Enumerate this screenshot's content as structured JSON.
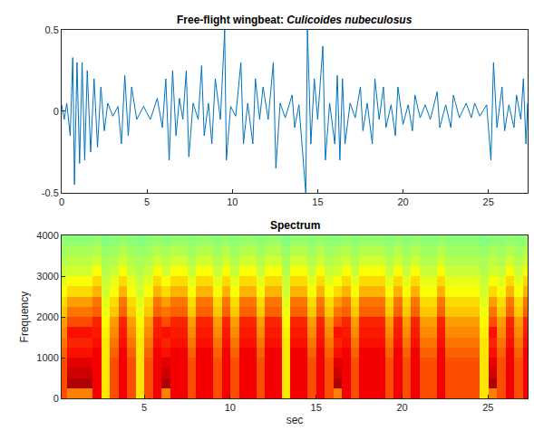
{
  "chart_data": [
    {
      "type": "line",
      "title": "Free-flight wingbeat: Culicoides nubeculosus",
      "color": "#0072bd",
      "xlim": [
        0,
        27.3
      ],
      "xticks": [
        0,
        5,
        10,
        15,
        20,
        25
      ],
      "ylim": [
        -0.5,
        0.5
      ],
      "yticks": [
        -0.5,
        0,
        0.5
      ],
      "x": [
        0,
        0.15,
        0.3,
        0.5,
        0.65,
        0.75,
        0.9,
        1.05,
        1.2,
        1.35,
        1.5,
        1.7,
        1.9,
        2.1,
        2.3,
        2.5,
        2.7,
        3.0,
        3.3,
        3.5,
        3.7,
        3.9,
        4.1,
        4.4,
        4.8,
        5.2,
        5.6,
        5.9,
        6.1,
        6.3,
        6.5,
        6.7,
        6.9,
        7.1,
        7.3,
        7.45,
        7.7,
        8.0,
        8.2,
        8.35,
        8.6,
        8.8,
        9.0,
        9.3,
        9.55,
        9.65,
        9.9,
        10.2,
        10.5,
        10.65,
        10.9,
        11.2,
        11.35,
        11.6,
        11.8,
        12.1,
        12.4,
        12.55,
        12.8,
        13.1,
        13.5,
        13.65,
        13.9,
        14.3,
        14.4,
        14.6,
        14.8,
        15.0,
        15.3,
        15.45,
        15.7,
        16.0,
        16.15,
        16.3,
        16.45,
        16.6,
        16.9,
        17.2,
        17.5,
        17.65,
        17.9,
        18.2,
        18.35,
        18.6,
        18.85,
        19.0,
        19.3,
        19.55,
        19.7,
        20.0,
        20.3,
        20.55,
        20.7,
        21.0,
        21.3,
        21.6,
        22.0,
        22.15,
        22.5,
        22.8,
        22.95,
        23.3,
        23.7,
        24.0,
        24.2,
        24.5,
        24.9,
        25.15,
        25.3,
        25.5,
        25.8,
        25.95,
        26.2,
        26.5,
        26.65,
        26.9,
        27.05,
        27.2,
        27.3
      ],
      "values": [
        0.04,
        -0.05,
        0.05,
        -0.15,
        0.33,
        -0.45,
        0.3,
        -0.32,
        0.3,
        -0.3,
        0.25,
        -0.25,
        0.2,
        -0.22,
        0.15,
        -0.12,
        0.05,
        -0.03,
        0.03,
        -0.2,
        0.22,
        -0.15,
        0.15,
        -0.05,
        0.03,
        -0.05,
        0.08,
        -0.1,
        0.2,
        -0.3,
        0.25,
        -0.15,
        0.08,
        -0.05,
        0.25,
        -0.28,
        0.05,
        -0.05,
        0.28,
        -0.15,
        0.05,
        -0.2,
        0.2,
        -0.05,
        0.5,
        -0.3,
        0.03,
        -0.03,
        0.3,
        -0.2,
        0.05,
        -0.2,
        0.2,
        -0.05,
        0.15,
        -0.05,
        0.3,
        -0.35,
        0.05,
        -0.04,
        0.1,
        -0.1,
        0.04,
        -0.5,
        0.5,
        -0.2,
        0.2,
        -0.05,
        0.4,
        -0.3,
        0.05,
        -0.2,
        0.22,
        -0.3,
        0.2,
        -0.2,
        0.05,
        -0.04,
        0.15,
        -0.12,
        0.05,
        -0.2,
        0.2,
        -0.05,
        0.15,
        -0.1,
        0.04,
        -0.15,
        0.15,
        -0.08,
        0.04,
        -0.12,
        0.1,
        -0.04,
        0.04,
        -0.05,
        0.12,
        -0.1,
        0.04,
        -0.1,
        0.1,
        -0.04,
        0.05,
        -0.04,
        0.05,
        -0.03,
        0.04,
        -0.3,
        0.3,
        -0.1,
        0.15,
        -0.12,
        0.04,
        -0.1,
        0.1,
        -0.05,
        0.2,
        -0.2,
        0.05
      ]
    },
    {
      "type": "heatmap",
      "title": "Spectrum",
      "x_label": "sec",
      "y_label": "Frequency",
      "xlim": [
        0.2,
        27.3
      ],
      "xticks": [
        5,
        10,
        15,
        20,
        25
      ],
      "ylim": [
        0,
        4000
      ],
      "yticks": [
        0,
        1000,
        2000,
        3000,
        4000
      ],
      "zlim": [
        0,
        100
      ],
      "x": [
        0.25,
        0.75,
        1.25,
        1.75,
        2.25,
        2.75,
        3.25,
        3.75,
        4.25,
        4.75,
        5.25,
        5.75,
        6.25,
        6.75,
        7.25,
        7.75,
        8.25,
        8.75,
        9.25,
        9.75,
        10.25,
        10.75,
        11.25,
        11.75,
        12.25,
        12.75,
        13.25,
        13.75,
        14.25,
        14.75,
        15.25,
        15.75,
        16.25,
        16.75,
        17.25,
        17.75,
        18.25,
        18.75,
        19.25,
        19.75,
        20.25,
        20.75,
        21.25,
        21.75,
        22.25,
        22.75,
        23.25,
        23.75,
        24.25,
        24.75,
        25.25,
        25.75,
        26.25,
        26.75,
        27.25
      ],
      "y": [
        125,
        375,
        625,
        875,
        1125,
        1375,
        1625,
        1875,
        2125,
        2375,
        2625,
        2875,
        3125,
        3375,
        3625,
        3875
      ],
      "z": [
        [
          80,
          75,
          75,
          75,
          88,
          65,
          80,
          88,
          80,
          65,
          80,
          88,
          75,
          88,
          88,
          80,
          88,
          88,
          80,
          88,
          80,
          88,
          88,
          80,
          88,
          88,
          65,
          88,
          88,
          80,
          88,
          80,
          75,
          88,
          80,
          88,
          88,
          88,
          80,
          88,
          80,
          88,
          80,
          80,
          88,
          80,
          80,
          80,
          80,
          65,
          75,
          80,
          88,
          80,
          88
        ],
        [
          80,
          95,
          95,
          95,
          88,
          65,
          80,
          88,
          80,
          65,
          80,
          88,
          95,
          88,
          88,
          80,
          88,
          88,
          80,
          88,
          80,
          88,
          88,
          80,
          88,
          88,
          65,
          88,
          88,
          80,
          88,
          80,
          95,
          88,
          80,
          88,
          88,
          88,
          80,
          88,
          80,
          88,
          80,
          80,
          88,
          80,
          80,
          80,
          80,
          65,
          95,
          80,
          88,
          80,
          88
        ],
        [
          80,
          92,
          92,
          92,
          88,
          65,
          80,
          88,
          80,
          65,
          80,
          88,
          92,
          88,
          88,
          80,
          88,
          88,
          80,
          88,
          80,
          88,
          88,
          80,
          88,
          88,
          65,
          88,
          88,
          80,
          88,
          80,
          92,
          88,
          80,
          88,
          88,
          88,
          80,
          88,
          80,
          88,
          80,
          80,
          88,
          80,
          80,
          80,
          80,
          65,
          92,
          80,
          88,
          80,
          88
        ],
        [
          80,
          90,
          90,
          90,
          88,
          65,
          80,
          88,
          80,
          65,
          80,
          88,
          90,
          88,
          88,
          80,
          88,
          88,
          80,
          88,
          80,
          88,
          88,
          80,
          88,
          88,
          65,
          88,
          88,
          80,
          88,
          80,
          90,
          88,
          80,
          88,
          88,
          88,
          80,
          88,
          80,
          88,
          80,
          80,
          88,
          80,
          80,
          80,
          80,
          65,
          90,
          80,
          88,
          80,
          88
        ],
        [
          78,
          86,
          86,
          86,
          88,
          65,
          78,
          88,
          78,
          65,
          78,
          88,
          86,
          88,
          88,
          78,
          88,
          88,
          78,
          88,
          78,
          88,
          88,
          78,
          88,
          88,
          65,
          88,
          88,
          78,
          88,
          78,
          86,
          88,
          78,
          88,
          88,
          88,
          78,
          88,
          78,
          88,
          78,
          78,
          88,
          78,
          78,
          78,
          78,
          65,
          86,
          78,
          88,
          78,
          88
        ],
        [
          76,
          84,
          84,
          84,
          86,
          65,
          76,
          86,
          76,
          65,
          76,
          86,
          84,
          86,
          86,
          76,
          86,
          86,
          76,
          86,
          76,
          86,
          86,
          76,
          86,
          86,
          65,
          86,
          86,
          76,
          86,
          76,
          84,
          86,
          76,
          86,
          86,
          86,
          76,
          86,
          76,
          86,
          76,
          76,
          86,
          76,
          76,
          76,
          76,
          65,
          84,
          76,
          86,
          76,
          86
        ],
        [
          74,
          86,
          86,
          86,
          85,
          64,
          74,
          85,
          74,
          64,
          74,
          85,
          86,
          85,
          85,
          74,
          85,
          85,
          74,
          85,
          74,
          85,
          85,
          74,
          85,
          85,
          64,
          85,
          85,
          74,
          85,
          74,
          86,
          85,
          74,
          85,
          85,
          85,
          74,
          85,
          74,
          85,
          74,
          74,
          85,
          74,
          74,
          74,
          74,
          64,
          86,
          74,
          85,
          74,
          85
        ],
        [
          72,
          80,
          80,
          80,
          84,
          63,
          72,
          84,
          72,
          63,
          72,
          84,
          80,
          84,
          84,
          72,
          84,
          84,
          72,
          84,
          72,
          84,
          84,
          72,
          84,
          84,
          63,
          84,
          84,
          72,
          84,
          72,
          80,
          84,
          72,
          84,
          84,
          84,
          72,
          84,
          72,
          84,
          72,
          72,
          84,
          72,
          72,
          72,
          72,
          63,
          80,
          72,
          84,
          72,
          84
        ],
        [
          68,
          76,
          76,
          76,
          78,
          61,
          68,
          78,
          68,
          61,
          68,
          78,
          76,
          78,
          78,
          68,
          78,
          78,
          68,
          78,
          68,
          78,
          78,
          68,
          78,
          78,
          61,
          78,
          78,
          68,
          78,
          68,
          76,
          78,
          68,
          78,
          78,
          78,
          68,
          78,
          68,
          78,
          68,
          68,
          78,
          68,
          68,
          68,
          68,
          61,
          76,
          68,
          78,
          68,
          78
        ],
        [
          66,
          72,
          72,
          72,
          76,
          60,
          66,
          76,
          66,
          60,
          66,
          76,
          72,
          76,
          76,
          66,
          76,
          76,
          66,
          76,
          66,
          76,
          76,
          66,
          76,
          76,
          60,
          76,
          76,
          66,
          76,
          66,
          72,
          76,
          66,
          76,
          76,
          76,
          66,
          76,
          66,
          76,
          66,
          66,
          76,
          66,
          66,
          66,
          66,
          60,
          72,
          66,
          76,
          66,
          76
        ],
        [
          62,
          66,
          66,
          66,
          70,
          58,
          62,
          70,
          62,
          58,
          62,
          70,
          66,
          70,
          70,
          62,
          70,
          70,
          62,
          70,
          62,
          70,
          70,
          62,
          70,
          70,
          58,
          70,
          70,
          62,
          70,
          62,
          66,
          70,
          62,
          70,
          70,
          70,
          62,
          70,
          62,
          70,
          62,
          62,
          70,
          62,
          62,
          62,
          62,
          58,
          66,
          62,
          70,
          62,
          70
        ],
        [
          60,
          62,
          62,
          62,
          66,
          57,
          60,
          66,
          60,
          57,
          60,
          66,
          62,
          66,
          66,
          60,
          66,
          66,
          60,
          66,
          60,
          66,
          66,
          60,
          66,
          66,
          57,
          66,
          66,
          60,
          66,
          60,
          62,
          66,
          60,
          66,
          66,
          66,
          60,
          66,
          60,
          66,
          60,
          60,
          66,
          60,
          60,
          60,
          60,
          57,
          62,
          60,
          66,
          60,
          66
        ],
        [
          57,
          58,
          58,
          58,
          62,
          55,
          57,
          62,
          57,
          55,
          57,
          62,
          58,
          62,
          62,
          57,
          62,
          62,
          57,
          62,
          57,
          62,
          62,
          57,
          62,
          62,
          55,
          62,
          62,
          57,
          62,
          57,
          58,
          62,
          57,
          62,
          62,
          62,
          57,
          62,
          57,
          62,
          57,
          57,
          62,
          57,
          57,
          57,
          57,
          55,
          58,
          57,
          62,
          57,
          62
        ],
        [
          55,
          56,
          56,
          56,
          58,
          54,
          55,
          58,
          55,
          54,
          55,
          58,
          56,
          58,
          58,
          55,
          58,
          58,
          55,
          58,
          55,
          58,
          58,
          55,
          58,
          58,
          54,
          58,
          58,
          55,
          58,
          55,
          56,
          58,
          55,
          58,
          58,
          58,
          55,
          58,
          55,
          58,
          55,
          55,
          58,
          55,
          55,
          55,
          55,
          54,
          56,
          55,
          58,
          55,
          58
        ],
        [
          53,
          54,
          54,
          54,
          55,
          52,
          53,
          55,
          53,
          52,
          53,
          55,
          54,
          55,
          55,
          53,
          55,
          55,
          53,
          55,
          53,
          55,
          55,
          53,
          55,
          55,
          52,
          55,
          55,
          53,
          55,
          53,
          54,
          55,
          53,
          55,
          55,
          55,
          53,
          55,
          53,
          55,
          53,
          53,
          55,
          53,
          53,
          53,
          53,
          52,
          54,
          53,
          55,
          53,
          55
        ],
        [
          51,
          51,
          51,
          51,
          52,
          50,
          51,
          52,
          51,
          50,
          51,
          52,
          51,
          52,
          52,
          51,
          52,
          52,
          51,
          52,
          51,
          52,
          52,
          51,
          52,
          52,
          50,
          52,
          52,
          51,
          52,
          51,
          51,
          52,
          51,
          52,
          52,
          52,
          51,
          52,
          51,
          52,
          51,
          51,
          52,
          51,
          51,
          51,
          51,
          50,
          51,
          51,
          52,
          51,
          52
        ]
      ]
    }
  ]
}
